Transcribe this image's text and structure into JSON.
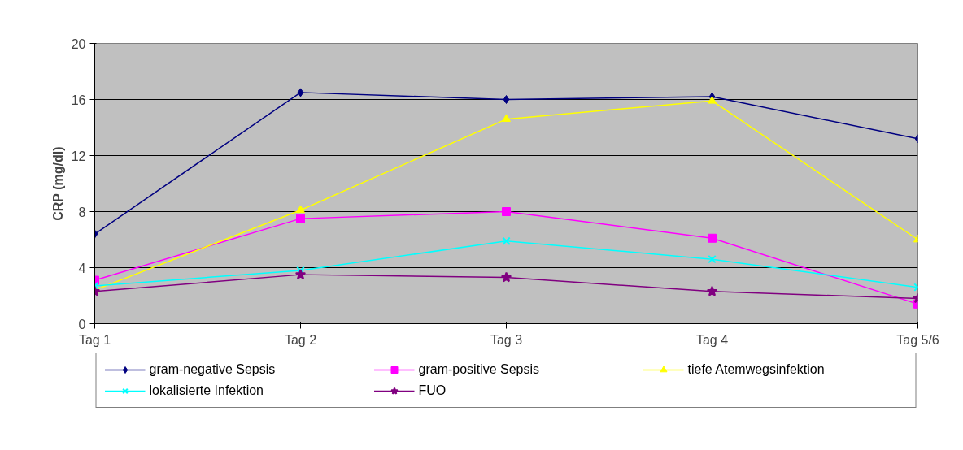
{
  "chart_data": {
    "type": "line",
    "ylabel": "CRP (mg/dl)",
    "categories": [
      "Tag 1",
      "Tag 2",
      "Tag 3",
      "Tag 4",
      "Tag 5/6"
    ],
    "ylim": [
      0,
      20
    ],
    "yticks": [
      0,
      4,
      8,
      12,
      16,
      20
    ],
    "grid": "y",
    "legend": "bottom",
    "series": [
      {
        "name": "gram-negative Sepsis",
        "color": "#000080",
        "marker": "diamond",
        "values": [
          6.4,
          16.5,
          16.0,
          16.2,
          13.2
        ]
      },
      {
        "name": "gram-positive Sepsis",
        "color": "#ff00ff",
        "marker": "square",
        "values": [
          3.1,
          7.5,
          8.0,
          6.1,
          1.4
        ]
      },
      {
        "name": "tiefe Atemwegsinfektion",
        "color": "#ffff00",
        "marker": "triangle",
        "values": [
          2.4,
          8.1,
          14.6,
          15.9,
          6.0
        ]
      },
      {
        "name": "lokalisierte Infektion",
        "color": "#00ffff",
        "marker": "cross",
        "values": [
          2.7,
          3.8,
          5.9,
          4.6,
          2.6
        ]
      },
      {
        "name": "FUO",
        "color": "#800080",
        "marker": "star",
        "values": [
          2.3,
          3.5,
          3.3,
          2.3,
          1.8
        ]
      }
    ]
  }
}
